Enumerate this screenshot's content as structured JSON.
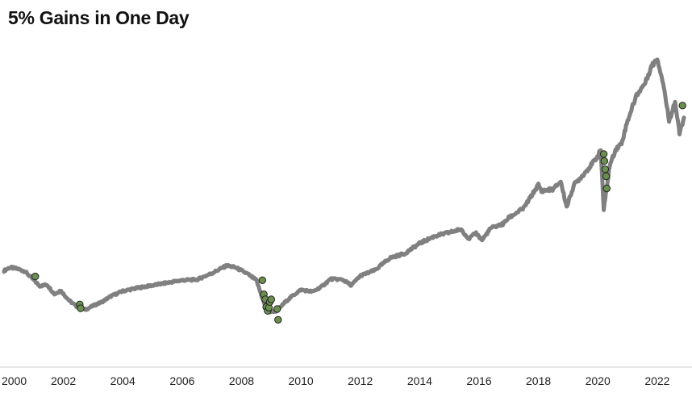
{
  "chart_data": {
    "type": "line",
    "title": "5% Gains in One Day",
    "xlabel": "",
    "ylabel": "",
    "xlim": [
      2000.0,
      2022.9
    ],
    "ylim": [
      0,
      5000
    ],
    "x_ticks": [
      "2000",
      "2002",
      "2004",
      "2006",
      "2008",
      "2010",
      "2012",
      "2014",
      "2016",
      "2018",
      "2020",
      "2022"
    ],
    "y_axis_visible": false,
    "grid": false,
    "legend": "none",
    "colors": {
      "line": "#808080",
      "marker_fill": "#6b8f4e",
      "marker_edge": "#222222",
      "axis": "#cccccc"
    },
    "series": [
      {
        "style": "line",
        "x": [
          2000.0,
          2000.2,
          2000.45,
          2000.7,
          2000.9,
          2001.2,
          2001.45,
          2001.7,
          2001.9,
          2002.2,
          2002.5,
          2002.75,
          2003.0,
          2003.3,
          2003.6,
          2004.0,
          2004.5,
          2005.0,
          2005.5,
          2006.0,
          2006.5,
          2007.0,
          2007.5,
          2007.8,
          2008.2,
          2008.5,
          2008.75,
          2008.9,
          2009.2,
          2009.45,
          2009.7,
          2010.0,
          2010.4,
          2010.7,
          2011.0,
          2011.4,
          2011.7,
          2012.0,
          2012.5,
          2013.0,
          2013.5,
          2014.0,
          2014.5,
          2015.0,
          2015.4,
          2015.65,
          2015.9,
          2016.1,
          2016.4,
          2016.8,
          2017.0,
          2017.5,
          2018.0,
          2018.1,
          2018.5,
          2018.75,
          2018.95,
          2019.2,
          2019.5,
          2019.8,
          2020.0,
          2020.1,
          2020.2,
          2020.4,
          2020.6,
          2020.8,
          2021.0,
          2021.3,
          2021.6,
          2021.8,
          2022.0,
          2022.2,
          2022.4,
          2022.6,
          2022.75,
          2022.9
        ],
        "y": [
          1450,
          1500,
          1480,
          1440,
          1350,
          1210,
          1230,
          1080,
          1140,
          980,
          870,
          840,
          900,
          960,
          1050,
          1130,
          1180,
          1220,
          1260,
          1300,
          1310,
          1410,
          1530,
          1500,
          1400,
          1300,
          950,
          800,
          820,
          950,
          1050,
          1150,
          1120,
          1200,
          1320,
          1310,
          1220,
          1370,
          1460,
          1650,
          1720,
          1880,
          1990,
          2050,
          2100,
          1950,
          2040,
          1930,
          2120,
          2180,
          2280,
          2430,
          2800,
          2700,
          2730,
          2850,
          2450,
          2800,
          2950,
          3120,
          3250,
          3350,
          2400,
          3100,
          3350,
          3450,
          3800,
          4200,
          4400,
          4650,
          4780,
          4400,
          3800,
          4100,
          3600,
          3850
        ]
      },
      {
        "style": "scatter",
        "x": [
          2001.05,
          2002.55,
          2002.58,
          2008.7,
          2008.75,
          2008.8,
          2008.83,
          2008.88,
          2008.92,
          2008.95,
          2009.0,
          2009.2,
          2009.23,
          2020.2,
          2020.22,
          2020.25,
          2020.28,
          2020.3,
          2022.85
        ],
        "y": [
          1360,
          920,
          860,
          1300,
          1080,
          1000,
          880,
          820,
          870,
          960,
          1000,
          850,
          680,
          3280,
          3170,
          3040,
          2930,
          2740,
          4040
        ]
      }
    ]
  }
}
